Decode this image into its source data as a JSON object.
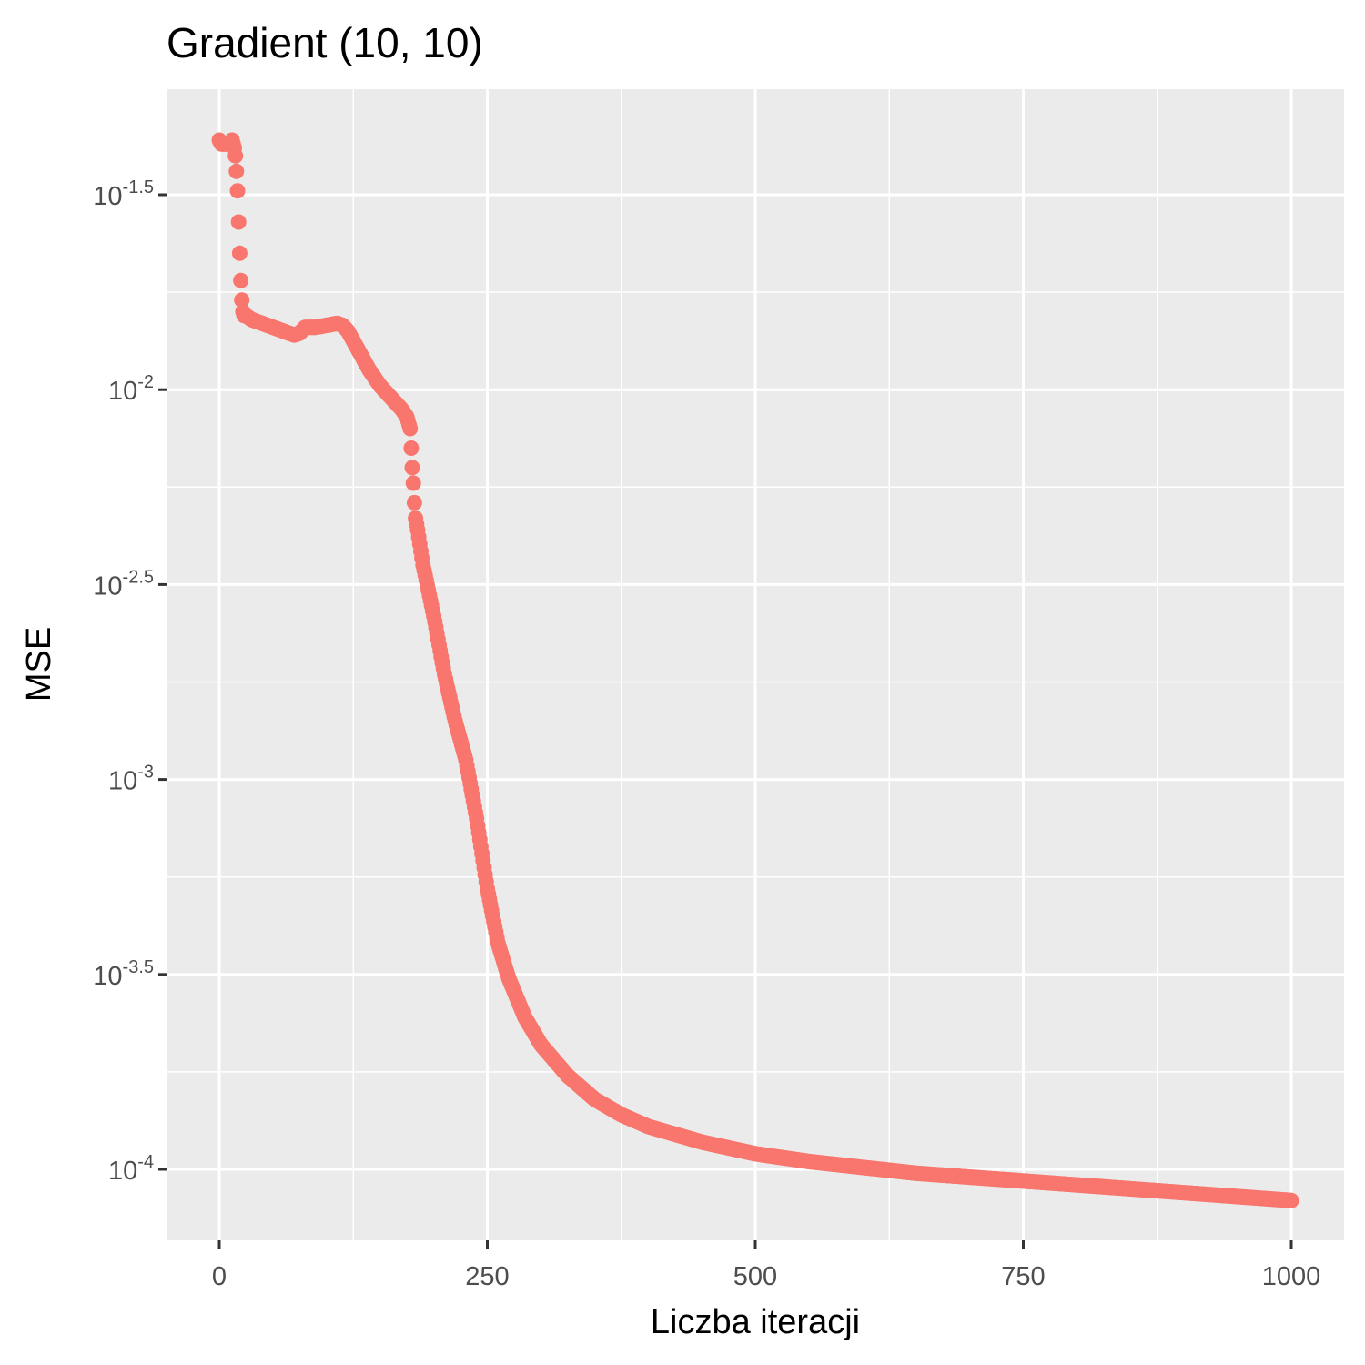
{
  "chart_data": {
    "type": "scatter",
    "title": "Gradient (10, 10)",
    "xlabel": "Liczba iteracji",
    "ylabel": "MSE",
    "y_scale": "log10",
    "xlim": [
      -50,
      1050
    ],
    "ylim_log10": [
      -4.2,
      -1.3
    ],
    "x_ticks": [
      {
        "value": 0,
        "label": "0"
      },
      {
        "value": 250,
        "label": "250"
      },
      {
        "value": 500,
        "label": "500"
      },
      {
        "value": 750,
        "label": "750"
      },
      {
        "value": 1000,
        "label": "1000"
      }
    ],
    "y_ticks": [
      {
        "log10": -1.5,
        "base": "10",
        "exp": "-1.5"
      },
      {
        "log10": -2,
        "base": "10",
        "exp": "-2"
      },
      {
        "log10": -2.5,
        "base": "10",
        "exp": "-2.5"
      },
      {
        "log10": -3,
        "base": "10",
        "exp": "-3"
      },
      {
        "log10": -3.5,
        "base": "10",
        "exp": "-3.5"
      },
      {
        "log10": -4,
        "base": "10",
        "exp": "-4"
      }
    ],
    "grid": true,
    "legend": "none",
    "point_color": "#F8766D",
    "panel_color": "#EBEBEB",
    "points_log10": [
      [
        0,
        -1.36
      ],
      [
        2,
        -1.37
      ],
      [
        4,
        -1.37
      ],
      [
        6,
        -1.37
      ],
      [
        8,
        -1.37
      ],
      [
        10,
        -1.37
      ],
      [
        12,
        -1.36
      ],
      [
        14,
        -1.38
      ],
      [
        15,
        -1.4
      ],
      [
        16,
        -1.44
      ],
      [
        17,
        -1.49
      ],
      [
        18,
        -1.57
      ],
      [
        19,
        -1.65
      ],
      [
        20,
        -1.72
      ],
      [
        21,
        -1.77
      ],
      [
        22,
        -1.8
      ],
      [
        23,
        -1.81
      ],
      [
        25,
        -1.81
      ],
      [
        30,
        -1.82
      ],
      [
        40,
        -1.83
      ],
      [
        50,
        -1.84
      ],
      [
        60,
        -1.85
      ],
      [
        70,
        -1.86
      ],
      [
        75,
        -1.855
      ],
      [
        80,
        -1.84
      ],
      [
        90,
        -1.84
      ],
      [
        100,
        -1.835
      ],
      [
        110,
        -1.83
      ],
      [
        115,
        -1.835
      ],
      [
        120,
        -1.85
      ],
      [
        130,
        -1.9
      ],
      [
        140,
        -1.95
      ],
      [
        150,
        -1.99
      ],
      [
        160,
        -2.02
      ],
      [
        170,
        -2.05
      ],
      [
        175,
        -2.07
      ],
      [
        178,
        -2.1
      ],
      [
        179,
        -2.15
      ],
      [
        180,
        -2.2
      ],
      [
        181,
        -2.24
      ],
      [
        182,
        -2.29
      ],
      [
        183,
        -2.33
      ],
      [
        185,
        -2.36
      ],
      [
        190,
        -2.45
      ],
      [
        200,
        -2.58
      ],
      [
        210,
        -2.73
      ],
      [
        220,
        -2.85
      ],
      [
        230,
        -2.95
      ],
      [
        240,
        -3.1
      ],
      [
        250,
        -3.28
      ],
      [
        260,
        -3.42
      ],
      [
        270,
        -3.51
      ],
      [
        285,
        -3.61
      ],
      [
        300,
        -3.68
      ],
      [
        325,
        -3.76
      ],
      [
        350,
        -3.82
      ],
      [
        375,
        -3.86
      ],
      [
        400,
        -3.89
      ],
      [
        425,
        -3.91
      ],
      [
        450,
        -3.93
      ],
      [
        475,
        -3.945
      ],
      [
        500,
        -3.96
      ],
      [
        550,
        -3.98
      ],
      [
        600,
        -3.995
      ],
      [
        650,
        -4.01
      ],
      [
        700,
        -4.02
      ],
      [
        750,
        -4.03
      ],
      [
        800,
        -4.04
      ],
      [
        850,
        -4.05
      ],
      [
        900,
        -4.06
      ],
      [
        950,
        -4.07
      ],
      [
        1000,
        -4.08
      ]
    ]
  }
}
